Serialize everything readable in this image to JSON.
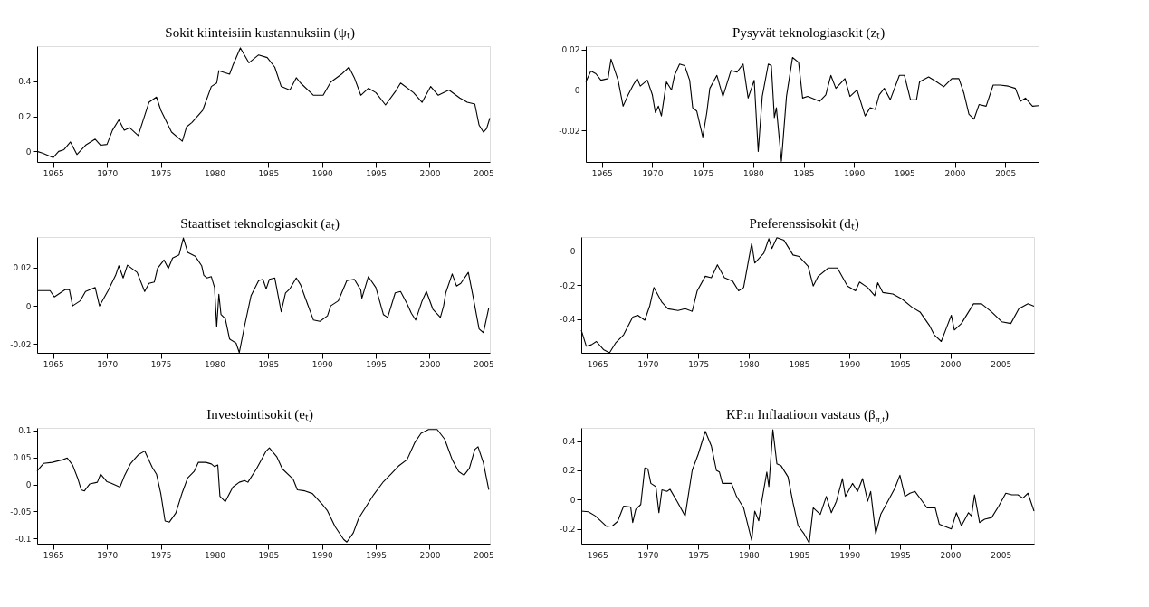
{
  "chart_data": [
    {
      "type": "line",
      "title": "Sokit kiinteisiin kustannuksiin (ψₜ)",
      "color": "#000000",
      "xlim": [
        1963.5,
        2005.6
      ],
      "ylim": [
        -0.06,
        0.6
      ],
      "xticks": [
        1965,
        1970,
        1975,
        1980,
        1985,
        1990,
        1995,
        2000,
        2005
      ],
      "yticks": [
        0,
        0.2,
        0.4
      ],
      "x": [
        1963.5,
        1964.0,
        1965.0,
        1965.5,
        1966.0,
        1966.6,
        1967.2,
        1968.0,
        1968.9,
        1969.4,
        1970.0,
        1970.5,
        1971.1,
        1971.6,
        1972.1,
        1972.9,
        1973.9,
        1974.6,
        1975.0,
        1976.0,
        1977.0,
        1977.4,
        1977.9,
        1978.9,
        1979.7,
        1980.2,
        1980.4,
        1981.4,
        1981.7,
        1982.4,
        1983.2,
        1984.1,
        1984.9,
        1985.6,
        1986.2,
        1987.0,
        1987.6,
        1988.0,
        1989.2,
        1990.1,
        1990.8,
        1991.8,
        1992.5,
        1993.0,
        1993.6,
        1994.3,
        1995.0,
        1995.9,
        1996.8,
        1997.3,
        1998.5,
        1999.3,
        2000.1,
        2000.8,
        2001.8,
        2002.8,
        2003.5,
        2004.2,
        2004.6,
        2005.0,
        2005.3,
        2005.6
      ],
      "values": [
        0.0,
        -0.01,
        -0.035,
        0.0,
        0.01,
        0.054,
        -0.018,
        0.035,
        0.07,
        0.035,
        0.04,
        0.12,
        0.18,
        0.12,
        0.135,
        0.09,
        0.28,
        0.31,
        0.235,
        0.11,
        0.058,
        0.14,
        0.165,
        0.235,
        0.37,
        0.39,
        0.46,
        0.44,
        0.49,
        0.59,
        0.505,
        0.55,
        0.535,
        0.48,
        0.37,
        0.35,
        0.42,
        0.39,
        0.32,
        0.32,
        0.395,
        0.44,
        0.48,
        0.42,
        0.32,
        0.36,
        0.335,
        0.265,
        0.34,
        0.39,
        0.335,
        0.28,
        0.37,
        0.32,
        0.35,
        0.305,
        0.28,
        0.27,
        0.15,
        0.11,
        0.13,
        0.19
      ]
    },
    {
      "type": "line",
      "title": "Pysyvät teknologiasokit (zₜ)",
      "color": "#000000",
      "xlim": [
        1963.4,
        2008.3
      ],
      "ylim": [
        -0.0355,
        0.0216
      ],
      "xticks": [
        1965,
        1970,
        1975,
        1980,
        1985,
        1990,
        1995,
        2000,
        2005
      ],
      "yticks": [
        -0.02,
        0,
        0.02
      ],
      "x": [
        1963.4,
        1963.9,
        1964.4,
        1964.9,
        1965.6,
        1965.9,
        1966.6,
        1967.1,
        1967.6,
        1968.1,
        1968.5,
        1968.8,
        1969.5,
        1970.0,
        1970.3,
        1970.6,
        1970.9,
        1971.4,
        1971.9,
        1972.2,
        1972.7,
        1973.2,
        1973.7,
        1974.0,
        1974.4,
        1975.0,
        1975.4,
        1975.7,
        1976.4,
        1977.0,
        1977.8,
        1978.4,
        1979.0,
        1979.5,
        1980.1,
        1980.5,
        1980.9,
        1981.5,
        1981.8,
        1982.1,
        1982.3,
        1982.8,
        1983.3,
        1983.9,
        1984.5,
        1984.9,
        1985.4,
        1986.6,
        1987.2,
        1987.7,
        1988.2,
        1989.1,
        1989.6,
        1990.3,
        1991.1,
        1991.6,
        1992.1,
        1992.5,
        1993.0,
        1993.6,
        1994.5,
        1995.0,
        1995.6,
        1996.2,
        1996.5,
        1997.4,
        1998.2,
        1998.9,
        1999.7,
        2000.4,
        2000.9,
        2001.4,
        2001.9,
        2002.4,
        2003.1,
        2003.8,
        2004.5,
        2005.3,
        2006.0,
        2006.5,
        2007.0,
        2007.7,
        2008.3
      ],
      "values": [
        0.004,
        0.0093,
        0.008,
        0.0048,
        0.0056,
        0.0152,
        0.0048,
        -0.008,
        -0.0024,
        0.0024,
        0.0056,
        0.0019,
        0.0048,
        -0.0024,
        -0.0112,
        -0.008,
        -0.0128,
        0.004,
        0.0,
        0.0072,
        0.0128,
        0.012,
        0.0048,
        -0.0088,
        -0.0104,
        -0.0232,
        -0.0112,
        0.0008,
        0.0072,
        -0.0032,
        0.0096,
        0.0088,
        0.0128,
        -0.004,
        0.0048,
        -0.0304,
        -0.0032,
        0.0128,
        0.012,
        -0.0136,
        -0.0088,
        -0.0352,
        -0.0032,
        0.016,
        0.0136,
        -0.004,
        -0.0032,
        -0.0056,
        -0.0024,
        0.0072,
        0.0008,
        0.0056,
        -0.0032,
        0.0,
        -0.0128,
        -0.0088,
        -0.0096,
        -0.0024,
        0.0008,
        -0.0048,
        0.0072,
        0.0072,
        -0.0048,
        -0.0048,
        0.004,
        0.0064,
        0.004,
        0.0016,
        0.0056,
        0.0056,
        -0.0016,
        -0.012,
        -0.0144,
        -0.0072,
        -0.008,
        0.0024,
        0.0024,
        0.0019,
        0.0008,
        -0.0056,
        -0.004,
        -0.008,
        -0.0077
      ]
    },
    {
      "type": "line",
      "title": "Staattiset teknologiasokit (aₜ)",
      "color": "#000000",
      "xlim": [
        1963.5,
        2005.6
      ],
      "ylim": [
        -0.0245,
        0.036
      ],
      "xticks": [
        1965,
        1970,
        1975,
        1980,
        1985,
        1990,
        1995,
        2000,
        2005
      ],
      "yticks": [
        -0.02,
        0,
        0.02
      ],
      "x": [
        1963.5,
        1964.7,
        1965.1,
        1966.1,
        1966.5,
        1966.8,
        1967.5,
        1968.0,
        1968.9,
        1969.3,
        1969.7,
        1970.1,
        1970.8,
        1971.1,
        1971.5,
        1971.9,
        1972.8,
        1973.5,
        1973.9,
        1974.4,
        1974.7,
        1975.3,
        1975.7,
        1976.1,
        1976.7,
        1977.1,
        1977.5,
        1978.2,
        1978.8,
        1979.0,
        1979.3,
        1979.7,
        1980.0,
        1980.2,
        1980.4,
        1980.6,
        1981.0,
        1981.4,
        1982.0,
        1982.3,
        1982.8,
        1983.4,
        1984.1,
        1984.5,
        1984.8,
        1985.1,
        1985.6,
        1986.2,
        1986.6,
        1987.0,
        1987.6,
        1988.0,
        1988.4,
        1989.2,
        1989.8,
        1990.5,
        1990.8,
        1991.5,
        1992.3,
        1993.0,
        1993.6,
        1993.7,
        1994.3,
        1995.0,
        1995.7,
        1996.1,
        1996.8,
        1997.3,
        1997.9,
        1998.3,
        1998.7,
        1999.3,
        1999.7,
        2000.3,
        2001.0,
        2001.3,
        2001.5,
        2002.1,
        2002.5,
        2002.9,
        2003.6,
        2004.0,
        2004.6,
        2005.0,
        2005.5
      ],
      "values": [
        0.008,
        0.008,
        0.0047,
        0.0085,
        0.0085,
        0.0,
        0.0026,
        0.0075,
        0.0096,
        0.0,
        0.004,
        0.008,
        0.016,
        0.021,
        0.0146,
        0.0213,
        0.0175,
        0.0075,
        0.0118,
        0.0125,
        0.0196,
        0.024,
        0.0196,
        0.025,
        0.0267,
        0.0355,
        0.028,
        0.026,
        0.021,
        0.016,
        0.0146,
        0.0153,
        0.0096,
        -0.011,
        0.0061,
        -0.0045,
        -0.0067,
        -0.0173,
        -0.0194,
        -0.0244,
        -0.0102,
        0.0054,
        0.0132,
        0.0139,
        0.0089,
        0.0139,
        0.0146,
        -0.0031,
        0.0068,
        0.0089,
        0.0146,
        0.011,
        0.0047,
        -0.0074,
        -0.0081,
        -0.0052,
        0.0,
        0.0026,
        0.0132,
        0.0139,
        0.0082,
        0.004,
        0.0153,
        0.0096,
        -0.0045,
        -0.006,
        0.0068,
        0.0075,
        0.0011,
        -0.0038,
        -0.0074,
        0.0026,
        0.0075,
        -0.0017,
        -0.006,
        0.0,
        0.0068,
        0.0167,
        0.0104,
        0.0118,
        0.0175,
        0.006,
        -0.012,
        -0.014,
        -0.001
      ]
    },
    {
      "type": "line",
      "title": "Preferenssisokit (dₜ)",
      "color": "#000000",
      "xlim": [
        1963.4,
        2008.3
      ],
      "ylim": [
        -0.596,
        0.08
      ],
      "xticks": [
        1965,
        1970,
        1975,
        1980,
        1985,
        1990,
        1995,
        2000,
        2005
      ],
      "yticks": [
        -0.4,
        -0.2,
        0
      ],
      "x": [
        1963.4,
        1963.9,
        1964.4,
        1964.9,
        1965.6,
        1966.2,
        1966.8,
        1967.6,
        1968.5,
        1969.0,
        1969.7,
        1970.2,
        1970.6,
        1971.4,
        1972.0,
        1973.0,
        1973.7,
        1974.4,
        1974.9,
        1975.7,
        1976.3,
        1976.9,
        1977.6,
        1978.4,
        1979.0,
        1979.5,
        1980.0,
        1980.3,
        1980.6,
        1981.5,
        1982.0,
        1982.3,
        1982.8,
        1983.5,
        1984.4,
        1985.0,
        1985.9,
        1986.4,
        1986.9,
        1987.9,
        1988.8,
        1989.8,
        1990.6,
        1991.0,
        1991.8,
        1992.5,
        1992.8,
        1993.3,
        1994.3,
        1995.2,
        1996.2,
        1997.0,
        1997.9,
        1998.4,
        1999.1,
        1999.6,
        2000.1,
        2000.4,
        2001.1,
        2002.3,
        2003.1,
        2004.1,
        2005.1,
        2006.0,
        2006.8,
        2007.7,
        2008.3
      ],
      "values": [
        -0.463,
        -0.558,
        -0.549,
        -0.53,
        -0.577,
        -0.596,
        -0.539,
        -0.491,
        -0.387,
        -0.377,
        -0.406,
        -0.32,
        -0.215,
        -0.301,
        -0.339,
        -0.349,
        -0.339,
        -0.354,
        -0.234,
        -0.149,
        -0.158,
        -0.082,
        -0.158,
        -0.177,
        -0.234,
        -0.215,
        -0.053,
        0.042,
        -0.072,
        -0.015,
        0.07,
        0.013,
        0.076,
        0.061,
        -0.025,
        -0.034,
        -0.091,
        -0.206,
        -0.149,
        -0.101,
        -0.101,
        -0.206,
        -0.234,
        -0.183,
        -0.215,
        -0.263,
        -0.187,
        -0.244,
        -0.253,
        -0.282,
        -0.33,
        -0.358,
        -0.434,
        -0.491,
        -0.53,
        -0.453,
        -0.377,
        -0.463,
        -0.425,
        -0.31,
        -0.31,
        -0.358,
        -0.415,
        -0.425,
        -0.339,
        -0.31,
        -0.324
      ]
    },
    {
      "type": "line",
      "title": "Investointisokit (eₜ)",
      "color": "#000000",
      "xlim": [
        1963.5,
        2005.6
      ],
      "ylim": [
        -0.11,
        0.105
      ],
      "xticks": [
        1965,
        1970,
        1975,
        1980,
        1985,
        1990,
        1995,
        2000,
        2005
      ],
      "yticks": [
        -0.1,
        -0.05,
        0,
        0.05,
        0.1
      ],
      "x": [
        1963.5,
        1964.1,
        1964.9,
        1965.9,
        1966.3,
        1966.8,
        1967.3,
        1967.6,
        1967.9,
        1968.4,
        1969.1,
        1969.4,
        1970.0,
        1970.4,
        1971.2,
        1971.6,
        1972.2,
        1972.9,
        1973.5,
        1974.2,
        1974.6,
        1975.0,
        1975.4,
        1975.8,
        1976.4,
        1977.0,
        1977.5,
        1978.1,
        1978.5,
        1979.2,
        1979.7,
        1980.0,
        1980.3,
        1980.5,
        1981.0,
        1981.7,
        1982.3,
        1982.8,
        1983.1,
        1983.9,
        1984.8,
        1985.1,
        1985.8,
        1986.3,
        1987.3,
        1987.7,
        1988.4,
        1989.1,
        1990.1,
        1990.5,
        1991.2,
        1992.0,
        1992.3,
        1992.9,
        1993.4,
        1994.0,
        1994.8,
        1995.7,
        1996.4,
        1997.1,
        1997.9,
        1998.6,
        1999.2,
        1999.9,
        2000.7,
        2001.4,
        2002.1,
        2002.7,
        2003.2,
        2003.7,
        2004.2,
        2004.5,
        2005.0,
        2005.5
      ],
      "values": [
        0.025,
        0.039,
        0.041,
        0.046,
        0.049,
        0.036,
        0.01,
        -0.01,
        -0.012,
        0.001,
        0.004,
        0.019,
        0.005,
        0.002,
        -0.005,
        0.015,
        0.039,
        0.055,
        0.062,
        0.032,
        0.019,
        -0.017,
        -0.068,
        -0.07,
        -0.053,
        -0.015,
        0.012,
        0.024,
        0.041,
        0.041,
        0.038,
        0.033,
        0.036,
        -0.022,
        -0.032,
        -0.005,
        0.004,
        0.007,
        0.004,
        0.029,
        0.062,
        0.068,
        0.051,
        0.029,
        0.01,
        -0.01,
        -0.012,
        -0.017,
        -0.039,
        -0.049,
        -0.078,
        -0.102,
        -0.107,
        -0.09,
        -0.063,
        -0.044,
        -0.019,
        0.005,
        0.019,
        0.034,
        0.046,
        0.077,
        0.095,
        0.102,
        0.102,
        0.084,
        0.046,
        0.024,
        0.017,
        0.03,
        0.065,
        0.07,
        0.04,
        -0.01
      ]
    },
    {
      "type": "line",
      "title": "KP:n Inflaatioon vastaus (β$_{π,t}$)",
      "color": "#000000",
      "xlim": [
        1963.4,
        2008.3
      ],
      "ylim": [
        -0.3,
        0.49
      ],
      "xticks": [
        1965,
        1970,
        1975,
        1980,
        1985,
        1990,
        1995,
        2000,
        2005
      ],
      "yticks": [
        -0.2,
        0,
        0.2,
        0.4
      ],
      "x": [
        1963.4,
        1964.1,
        1964.8,
        1965.9,
        1966.5,
        1967.0,
        1967.6,
        1968.3,
        1968.5,
        1968.8,
        1969.3,
        1969.7,
        1970.0,
        1970.3,
        1970.8,
        1971.1,
        1971.4,
        1971.9,
        1972.2,
        1972.9,
        1973.7,
        1974.4,
        1975.0,
        1975.7,
        1976.3,
        1976.8,
        1977.1,
        1977.4,
        1978.3,
        1978.8,
        1979.5,
        1980.3,
        1980.6,
        1981.0,
        1981.3,
        1981.8,
        1982.0,
        1982.4,
        1982.8,
        1983.2,
        1983.9,
        1984.4,
        1984.9,
        1985.5,
        1986.0,
        1986.4,
        1987.1,
        1987.7,
        1988.2,
        1988.7,
        1989.3,
        1989.6,
        1990.3,
        1990.8,
        1991.3,
        1991.8,
        1992.1,
        1992.6,
        1993.1,
        1993.8,
        1994.5,
        1995.0,
        1995.5,
        1996.0,
        1996.5,
        1997.7,
        1998.5,
        1998.9,
        2000.1,
        2000.6,
        2001.1,
        2001.8,
        2002.1,
        2002.4,
        2002.9,
        2003.4,
        2004.1,
        2004.8,
        2005.5,
        2006.1,
        2006.7,
        2007.2,
        2007.7,
        2008.3
      ],
      "values": [
        -0.078,
        -0.082,
        -0.111,
        -0.182,
        -0.178,
        -0.149,
        -0.044,
        -0.051,
        -0.156,
        -0.067,
        -0.033,
        0.216,
        0.211,
        0.111,
        0.089,
        -0.089,
        0.067,
        0.056,
        0.071,
        -0.011,
        -0.111,
        0.2,
        0.311,
        0.467,
        0.367,
        0.2,
        0.189,
        0.111,
        0.111,
        0.022,
        -0.056,
        -0.278,
        -0.078,
        -0.144,
        -0.011,
        0.189,
        0.089,
        0.478,
        0.244,
        0.233,
        0.156,
        -0.022,
        -0.178,
        -0.233,
        -0.296,
        -0.056,
        -0.1,
        0.022,
        -0.089,
        -0.011,
        0.144,
        0.022,
        0.111,
        0.056,
        0.144,
        -0.011,
        0.056,
        -0.233,
        -0.1,
        -0.011,
        0.078,
        0.167,
        0.022,
        0.044,
        0.056,
        -0.056,
        -0.056,
        -0.167,
        -0.2,
        -0.089,
        -0.178,
        -0.089,
        -0.111,
        0.033,
        -0.156,
        -0.133,
        -0.122,
        -0.044,
        0.044,
        0.033,
        0.033,
        0.011,
        0.044,
        -0.078
      ]
    }
  ]
}
